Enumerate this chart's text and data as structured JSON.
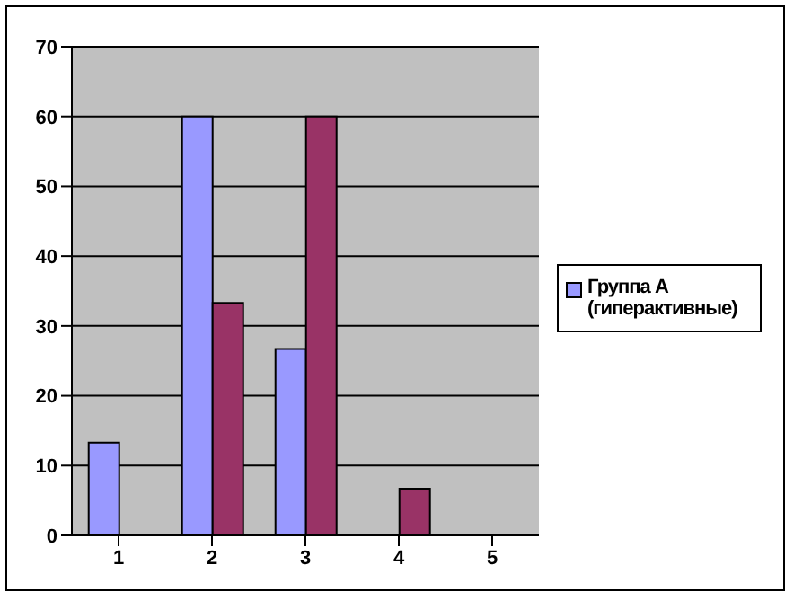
{
  "chart_data": {
    "type": "bar",
    "categories": [
      "1",
      "2",
      "3",
      "4",
      "5"
    ],
    "series": [
      {
        "name": "Группа А (гиперактивные)",
        "color": "#9999ff",
        "values": [
          13.3,
          60,
          26.7,
          0,
          0
        ]
      },
      {
        "color": "#993366",
        "values": [
          0,
          33.3,
          60,
          6.7,
          0
        ]
      }
    ],
    "ylim": [
      0,
      70
    ],
    "yticks": [
      0,
      10,
      20,
      30,
      40,
      50,
      60,
      70
    ],
    "grid": "y",
    "legend": "right"
  }
}
